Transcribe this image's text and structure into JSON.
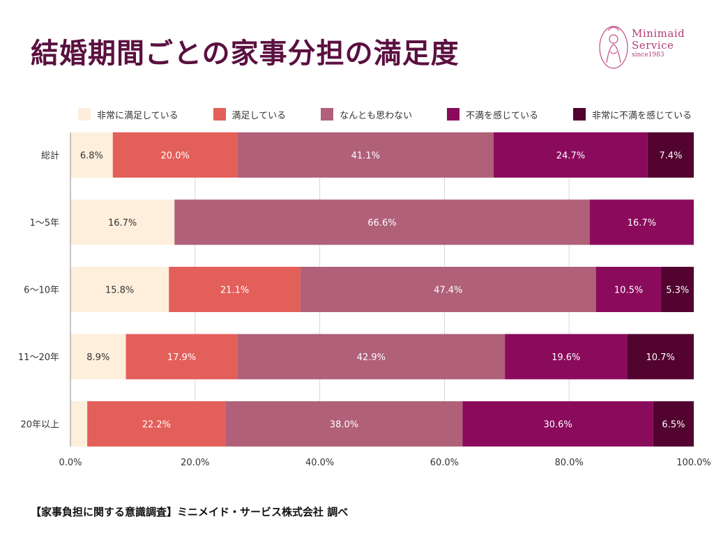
{
  "title": "結婚期間ごとの家事分担の満足度",
  "logo": {
    "line1": "Minimaid",
    "line2": "Service",
    "line3": "since1983"
  },
  "source": "【家事負担に関する意識調査】ミニメイド・サービス株式会社 調べ",
  "chart_data": {
    "type": "bar",
    "orientation": "horizontal",
    "stacked": true,
    "title": "結婚期間ごとの家事分担の満足度",
    "categories": [
      "総計",
      "1〜5年",
      "6〜10年",
      "11〜20年",
      "20年以上"
    ],
    "xlim": [
      0,
      100
    ],
    "xticks": [
      0,
      20,
      40,
      60,
      80,
      100
    ],
    "xtick_labels": [
      "0.0%",
      "20.0%",
      "40.0%",
      "60.0%",
      "80.0%",
      "100.0%"
    ],
    "grid": true,
    "legend_position": "top",
    "series": [
      {
        "name": "非常に満足している",
        "color": "#fdefdc",
        "label_color": "#333333",
        "values": [
          6.8,
          16.7,
          15.8,
          8.9,
          2.7
        ],
        "labels": [
          "6.8%",
          "16.7%",
          "15.8%",
          "8.9%",
          ""
        ]
      },
      {
        "name": "満足している",
        "color": "#e35f5a",
        "label_color": "#ffffff",
        "values": [
          20.0,
          0,
          21.1,
          17.9,
          22.2
        ],
        "labels": [
          "20.0%",
          "",
          "21.1%",
          "17.9%",
          "22.2%"
        ]
      },
      {
        "name": "なんとも思わない",
        "color": "#b06079",
        "label_color": "#ffffff",
        "values": [
          41.1,
          66.6,
          47.4,
          42.9,
          38.0
        ],
        "labels": [
          "41.1%",
          "66.6%",
          "47.4%",
          "42.9%",
          "38.0%"
        ]
      },
      {
        "name": "不満を感じている",
        "color": "#8a0b5c",
        "label_color": "#ffffff",
        "values": [
          24.7,
          16.7,
          10.5,
          19.6,
          30.6
        ],
        "labels": [
          "24.7%",
          "16.7%",
          "10.5%",
          "19.6%",
          "30.6%"
        ]
      },
      {
        "name": "非常に不満を感じている",
        "color": "#52032f",
        "label_color": "#ffffff",
        "values": [
          7.4,
          0,
          5.3,
          10.7,
          6.5
        ],
        "labels": [
          "7.4%",
          "",
          "5.3%",
          "10.7%",
          "6.5%"
        ]
      }
    ]
  }
}
